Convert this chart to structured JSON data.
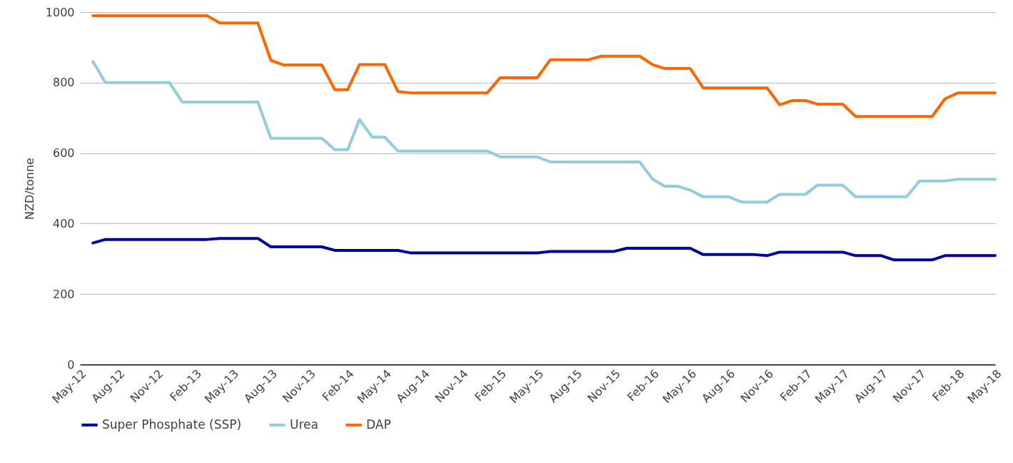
{
  "chart_data": {
    "type": "line",
    "ylabel": "NZD/tonne",
    "x": [
      "2012-06",
      "2012-07",
      "2012-08",
      "2012-09",
      "2012-10",
      "2012-11",
      "2012-12",
      "2013-01",
      "2013-02",
      "2013-03",
      "2013-04",
      "2013-05",
      "2013-06",
      "2013-07",
      "2013-08",
      "2013-09",
      "2013-10",
      "2013-11",
      "2013-12",
      "2014-01",
      "2014-02",
      "2014-03",
      "2014-04",
      "2014-05",
      "2014-06",
      "2014-07",
      "2014-08",
      "2014-09",
      "2014-10",
      "2014-11",
      "2014-12",
      "2015-01",
      "2015-02",
      "2015-03",
      "2015-04",
      "2015-05",
      "2015-06",
      "2015-07",
      "2015-08",
      "2015-09",
      "2015-10",
      "2015-11",
      "2015-12",
      "2016-01",
      "2016-02",
      "2016-03",
      "2016-04",
      "2016-05",
      "2016-06",
      "2016-07",
      "2016-08",
      "2016-09",
      "2016-10",
      "2016-11",
      "2016-12",
      "2017-01",
      "2017-02",
      "2017-03",
      "2017-04",
      "2017-05",
      "2017-06",
      "2017-07",
      "2017-08",
      "2017-09",
      "2017-10",
      "2017-11",
      "2017-12",
      "2018-01",
      "2018-02",
      "2018-03",
      "2018-04",
      "2018-05"
    ],
    "series": [
      {
        "name": "Super Phosphate (SSP)",
        "color": "#000099",
        "values": [
          345,
          355,
          355,
          355,
          355,
          355,
          355,
          355,
          355,
          355,
          358,
          358,
          358,
          358,
          334,
          334,
          334,
          334,
          334,
          324,
          324,
          324,
          324,
          324,
          324,
          317,
          317,
          317,
          317,
          317,
          317,
          317,
          317,
          317,
          317,
          317,
          321,
          321,
          321,
          321,
          321,
          321,
          330,
          330,
          330,
          330,
          330,
          330,
          312,
          312,
          312,
          312,
          312,
          309,
          319,
          319,
          319,
          319,
          319,
          319,
          309,
          309,
          309,
          297,
          297,
          297,
          297,
          309,
          309,
          309,
          309,
          309
        ]
      },
      {
        "name": "Urea",
        "color": "#92cddc",
        "values": [
          860,
          800,
          800,
          800,
          800,
          800,
          800,
          745,
          745,
          745,
          745,
          745,
          745,
          745,
          642,
          642,
          642,
          642,
          642,
          610,
          610,
          695,
          645,
          645,
          606,
          606,
          606,
          606,
          606,
          606,
          606,
          606,
          589,
          589,
          589,
          589,
          575,
          575,
          575,
          575,
          575,
          575,
          575,
          575,
          526,
          506,
          506,
          495,
          476,
          476,
          476,
          461,
          461,
          461,
          483,
          483,
          483,
          509,
          509,
          509,
          476,
          476,
          476,
          476,
          476,
          521,
          521,
          521,
          526,
          526,
          526,
          526
        ]
      },
      {
        "name": "DAP",
        "color": "#ff6600",
        "values": [
          990,
          990,
          990,
          990,
          990,
          990,
          990,
          990,
          990,
          990,
          969,
          969,
          969,
          969,
          863,
          850,
          850,
          850,
          850,
          780,
          780,
          851,
          851,
          851,
          775,
          771,
          771,
          771,
          771,
          771,
          771,
          771,
          814,
          814,
          814,
          814,
          865,
          865,
          865,
          865,
          875,
          875,
          875,
          875,
          851,
          840,
          840,
          840,
          785,
          785,
          785,
          785,
          785,
          785,
          737,
          749,
          749,
          739,
          739,
          739,
          704,
          704,
          704,
          704,
          704,
          704,
          704,
          754,
          771,
          771,
          771,
          771
        ]
      }
    ],
    "xlim": [
      "2012-05",
      "2018-05"
    ],
    "xticks": [
      {
        "value": "2012-05",
        "label": "May-12"
      },
      {
        "value": "2012-08",
        "label": "Aug-12"
      },
      {
        "value": "2012-11",
        "label": "Nov-12"
      },
      {
        "value": "2013-02",
        "label": "Feb-13"
      },
      {
        "value": "2013-05",
        "label": "May-13"
      },
      {
        "value": "2013-08",
        "label": "Aug-13"
      },
      {
        "value": "2013-11",
        "label": "Nov-13"
      },
      {
        "value": "2014-02",
        "label": "Feb-14"
      },
      {
        "value": "2014-05",
        "label": "May-14"
      },
      {
        "value": "2014-08",
        "label": "Aug-14"
      },
      {
        "value": "2014-11",
        "label": "Nov-14"
      },
      {
        "value": "2015-02",
        "label": "Feb-15"
      },
      {
        "value": "2015-05",
        "label": "May-15"
      },
      {
        "value": "2015-08",
        "label": "Aug-15"
      },
      {
        "value": "2015-11",
        "label": "Nov-15"
      },
      {
        "value": "2016-02",
        "label": "Feb-16"
      },
      {
        "value": "2016-05",
        "label": "May-16"
      },
      {
        "value": "2016-08",
        "label": "Aug-16"
      },
      {
        "value": "2016-11",
        "label": "Nov-16"
      },
      {
        "value": "2017-02",
        "label": "Feb-17"
      },
      {
        "value": "2017-05",
        "label": "May-17"
      },
      {
        "value": "2017-08",
        "label": "Aug-17"
      },
      {
        "value": "2017-11",
        "label": "Nov-17"
      },
      {
        "value": "2018-02",
        "label": "Feb-18"
      },
      {
        "value": "2018-05",
        "label": "May-18"
      }
    ],
    "ylim": [
      0,
      1000
    ],
    "yticks": [
      0,
      200,
      400,
      600,
      800,
      1000
    ],
    "grid": "y",
    "legend": "bottom",
    "line_style": "solid"
  }
}
